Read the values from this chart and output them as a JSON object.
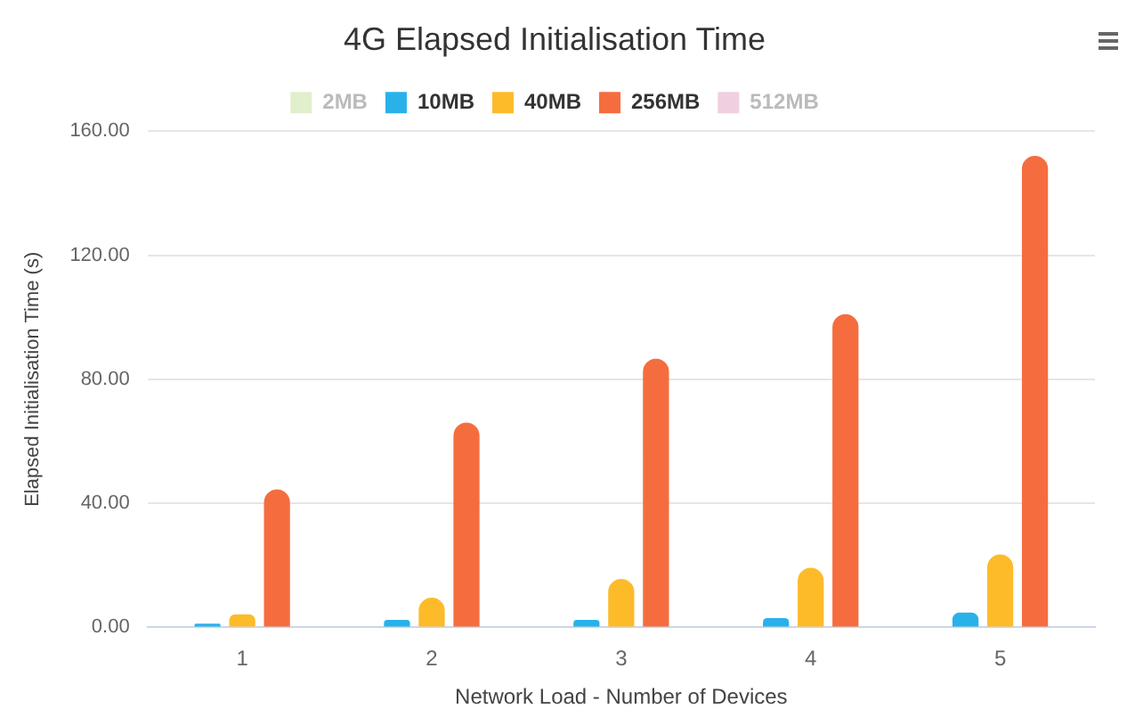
{
  "chart_data": {
    "type": "bar",
    "title": "4G Elapsed Initialisation Time",
    "xlabel": "Network Load - Number of Devices",
    "ylabel": "Elapsed Initialisation Time (s)",
    "categories": [
      "1",
      "2",
      "3",
      "4",
      "5"
    ],
    "series": [
      {
        "name": "2MB",
        "color": "#e2efcc",
        "values": [
          null,
          null,
          null,
          null,
          null
        ]
      },
      {
        "name": "10MB",
        "color": "#29b1ea",
        "values": [
          1.2,
          2.4,
          2.4,
          3,
          4.8
        ]
      },
      {
        "name": "40MB",
        "color": "#fdbb2a",
        "values": [
          4.2,
          9.6,
          15.6,
          19.2,
          23.5
        ]
      },
      {
        "name": "256MB",
        "color": "#f56d3e",
        "values": [
          44.5,
          66,
          86.6,
          101,
          152
        ]
      },
      {
        "name": "512MB",
        "color": "#f0cfe0",
        "values": [
          null,
          null,
          null,
          null,
          null
        ]
      }
    ],
    "ylim": [
      0,
      160
    ],
    "yticks": [
      {
        "value": 0,
        "label": "0.00"
      },
      {
        "value": 40,
        "label": "40.00"
      },
      {
        "value": 80,
        "label": "80.00"
      },
      {
        "value": 120,
        "label": "120.00"
      },
      {
        "value": 160,
        "label": "160.00"
      }
    ],
    "grid": "y",
    "legend": "top"
  }
}
